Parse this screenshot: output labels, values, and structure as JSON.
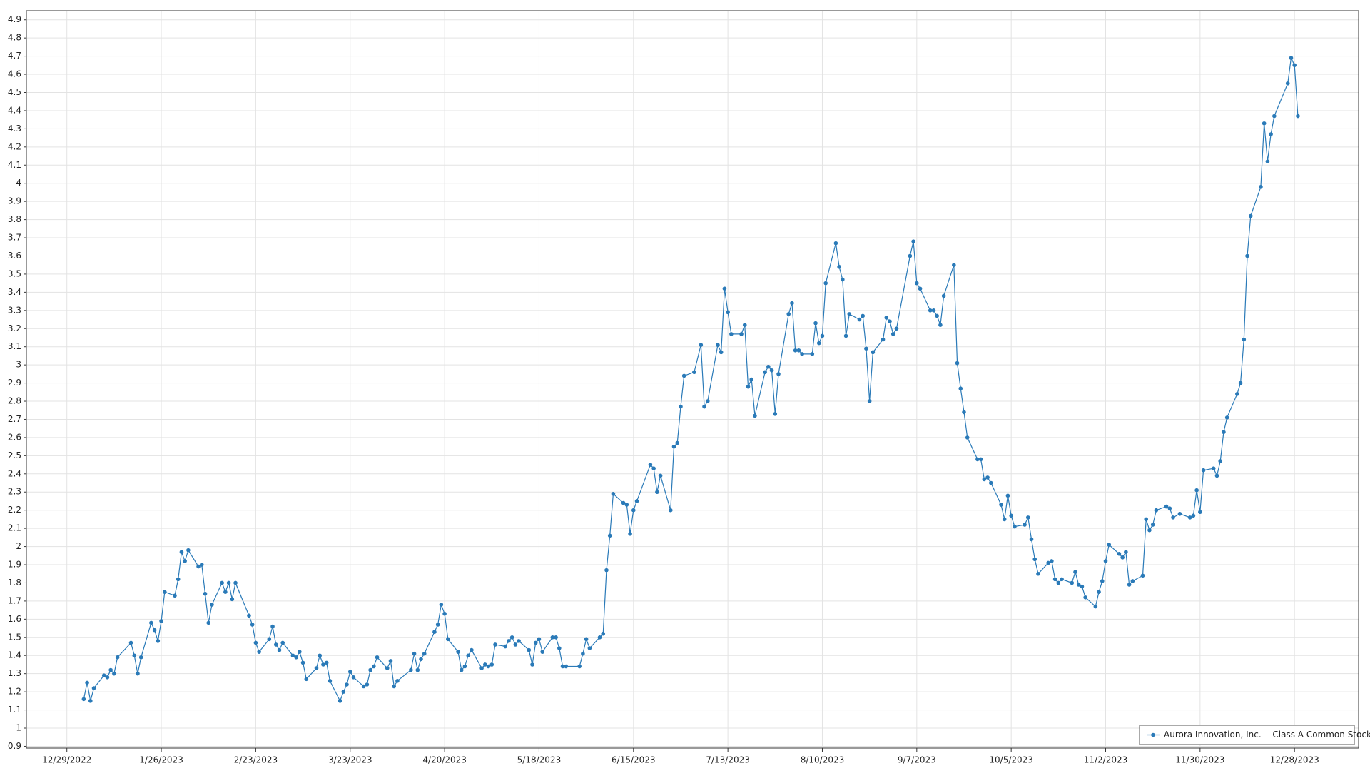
{
  "chart_data": {
    "type": "line",
    "x": [
      "2023-01-03",
      "2023-01-04",
      "2023-01-05",
      "2023-01-06",
      "2023-01-09",
      "2023-01-10",
      "2023-01-11",
      "2023-01-12",
      "2023-01-13",
      "2023-01-17",
      "2023-01-18",
      "2023-01-19",
      "2023-01-20",
      "2023-01-23",
      "2023-01-24",
      "2023-01-25",
      "2023-01-26",
      "2023-01-27",
      "2023-01-30",
      "2023-01-31",
      "2023-02-01",
      "2023-02-02",
      "2023-02-03",
      "2023-02-06",
      "2023-02-07",
      "2023-02-08",
      "2023-02-09",
      "2023-02-10",
      "2023-02-13",
      "2023-02-14",
      "2023-02-15",
      "2023-02-16",
      "2023-02-17",
      "2023-02-21",
      "2023-02-22",
      "2023-02-23",
      "2023-02-24",
      "2023-02-27",
      "2023-02-28",
      "2023-03-01",
      "2023-03-02",
      "2023-03-03",
      "2023-03-06",
      "2023-03-07",
      "2023-03-08",
      "2023-03-09",
      "2023-03-10",
      "2023-03-13",
      "2023-03-14",
      "2023-03-15",
      "2023-03-16",
      "2023-03-17",
      "2023-03-20",
      "2023-03-21",
      "2023-03-22",
      "2023-03-23",
      "2023-03-24",
      "2023-03-27",
      "2023-03-28",
      "2023-03-29",
      "2023-03-30",
      "2023-03-31",
      "2023-04-03",
      "2023-04-04",
      "2023-04-05",
      "2023-04-06",
      "2023-04-10",
      "2023-04-11",
      "2023-04-12",
      "2023-04-13",
      "2023-04-14",
      "2023-04-17",
      "2023-04-18",
      "2023-04-19",
      "2023-04-20",
      "2023-04-21",
      "2023-04-24",
      "2023-04-25",
      "2023-04-26",
      "2023-04-27",
      "2023-04-28",
      "2023-05-01",
      "2023-05-02",
      "2023-05-03",
      "2023-05-04",
      "2023-05-05",
      "2023-05-08",
      "2023-05-09",
      "2023-05-10",
      "2023-05-11",
      "2023-05-12",
      "2023-05-15",
      "2023-05-16",
      "2023-05-17",
      "2023-05-18",
      "2023-05-19",
      "2023-05-22",
      "2023-05-23",
      "2023-05-24",
      "2023-05-25",
      "2023-05-26",
      "2023-05-30",
      "2023-05-31",
      "2023-06-01",
      "2023-06-02",
      "2023-06-05",
      "2023-06-06",
      "2023-06-07",
      "2023-06-08",
      "2023-06-09",
      "2023-06-12",
      "2023-06-13",
      "2023-06-14",
      "2023-06-15",
      "2023-06-16",
      "2023-06-20",
      "2023-06-21",
      "2023-06-22",
      "2023-06-23",
      "2023-06-26",
      "2023-06-27",
      "2023-06-28",
      "2023-06-29",
      "2023-06-30",
      "2023-07-03",
      "2023-07-05",
      "2023-07-06",
      "2023-07-07",
      "2023-07-10",
      "2023-07-11",
      "2023-07-12",
      "2023-07-13",
      "2023-07-14",
      "2023-07-17",
      "2023-07-18",
      "2023-07-19",
      "2023-07-20",
      "2023-07-21",
      "2023-07-24",
      "2023-07-25",
      "2023-07-26",
      "2023-07-27",
      "2023-07-28",
      "2023-07-31",
      "2023-08-01",
      "2023-08-02",
      "2023-08-03",
      "2023-08-04",
      "2023-08-07",
      "2023-08-08",
      "2023-08-09",
      "2023-08-10",
      "2023-08-11",
      "2023-08-14",
      "2023-08-15",
      "2023-08-16",
      "2023-08-17",
      "2023-08-18",
      "2023-08-21",
      "2023-08-22",
      "2023-08-23",
      "2023-08-24",
      "2023-08-25",
      "2023-08-28",
      "2023-08-29",
      "2023-08-30",
      "2023-08-31",
      "2023-09-01",
      "2023-09-05",
      "2023-09-06",
      "2023-09-07",
      "2023-09-08",
      "2023-09-11",
      "2023-09-12",
      "2023-09-13",
      "2023-09-14",
      "2023-09-15",
      "2023-09-18",
      "2023-09-19",
      "2023-09-20",
      "2023-09-21",
      "2023-09-22",
      "2023-09-25",
      "2023-09-26",
      "2023-09-27",
      "2023-09-28",
      "2023-09-29",
      "2023-10-02",
      "2023-10-03",
      "2023-10-04",
      "2023-10-05",
      "2023-10-06",
      "2023-10-09",
      "2023-10-10",
      "2023-10-11",
      "2023-10-12",
      "2023-10-13",
      "2023-10-16",
      "2023-10-17",
      "2023-10-18",
      "2023-10-19",
      "2023-10-20",
      "2023-10-23",
      "2023-10-24",
      "2023-10-25",
      "2023-10-26",
      "2023-10-27",
      "2023-10-30",
      "2023-10-31",
      "2023-11-01",
      "2023-11-02",
      "2023-11-03",
      "2023-11-06",
      "2023-11-07",
      "2023-11-08",
      "2023-11-09",
      "2023-11-10",
      "2023-11-13",
      "2023-11-14",
      "2023-11-15",
      "2023-11-16",
      "2023-11-17",
      "2023-11-20",
      "2023-11-21",
      "2023-11-22",
      "2023-11-24",
      "2023-11-27",
      "2023-11-28",
      "2023-11-29",
      "2023-11-30",
      "2023-12-01",
      "2023-12-04",
      "2023-12-05",
      "2023-12-06",
      "2023-12-07",
      "2023-12-08",
      "2023-12-11",
      "2023-12-12",
      "2023-12-13",
      "2023-12-14",
      "2023-12-15",
      "2023-12-18",
      "2023-12-19",
      "2023-12-20",
      "2023-12-21",
      "2023-12-22",
      "2023-12-26",
      "2023-12-27",
      "2023-12-28",
      "2023-12-29"
    ],
    "series": [
      {
        "name": "Aurora Innovation, Inc.  - Class A Common Stock",
        "color": "#2a7ab8",
        "values": [
          1.16,
          1.25,
          1.15,
          1.22,
          1.29,
          1.28,
          1.32,
          1.3,
          1.39,
          1.47,
          1.4,
          1.3,
          1.39,
          1.58,
          1.54,
          1.48,
          1.59,
          1.75,
          1.73,
          1.82,
          1.97,
          1.92,
          1.98,
          1.89,
          1.9,
          1.74,
          1.58,
          1.68,
          1.8,
          1.75,
          1.8,
          1.71,
          1.8,
          1.62,
          1.57,
          1.47,
          1.42,
          1.49,
          1.56,
          1.46,
          1.43,
          1.47,
          1.4,
          1.39,
          1.42,
          1.36,
          1.27,
          1.33,
          1.4,
          1.35,
          1.36,
          1.26,
          1.15,
          1.2,
          1.24,
          1.31,
          1.28,
          1.23,
          1.24,
          1.32,
          1.34,
          1.39,
          1.33,
          1.37,
          1.23,
          1.26,
          1.32,
          1.41,
          1.32,
          1.38,
          1.41,
          1.53,
          1.57,
          1.68,
          1.63,
          1.49,
          1.42,
          1.32,
          1.34,
          1.4,
          1.43,
          1.33,
          1.35,
          1.34,
          1.35,
          1.46,
          1.45,
          1.48,
          1.5,
          1.46,
          1.48,
          1.43,
          1.35,
          1.47,
          1.49,
          1.42,
          1.5,
          1.5,
          1.44,
          1.34,
          1.34,
          1.34,
          1.41,
          1.49,
          1.44,
          1.5,
          1.52,
          1.87,
          2.06,
          2.29,
          2.24,
          2.23,
          2.07,
          2.2,
          2.25,
          2.45,
          2.43,
          2.3,
          2.39,
          2.2,
          2.55,
          2.57,
          2.77,
          2.94,
          2.96,
          3.11,
          2.77,
          2.8,
          3.11,
          3.07,
          3.42,
          3.29,
          3.17,
          3.17,
          3.22,
          2.88,
          2.92,
          2.72,
          2.96,
          2.99,
          2.97,
          2.73,
          2.95,
          3.28,
          3.34,
          3.08,
          3.08,
          3.06,
          3.06,
          3.23,
          3.12,
          3.16,
          3.45,
          3.67,
          3.54,
          3.47,
          3.16,
          3.28,
          3.25,
          3.27,
          3.09,
          2.8,
          3.07,
          3.14,
          3.26,
          3.24,
          3.17,
          3.2,
          3.6,
          3.68,
          3.45,
          3.42,
          3.3,
          3.3,
          3.27,
          3.22,
          3.38,
          3.55,
          3.01,
          2.87,
          2.74,
          2.6,
          2.48,
          2.48,
          2.37,
          2.38,
          2.35,
          2.23,
          2.15,
          2.28,
          2.17,
          2.11,
          2.12,
          2.16,
          2.04,
          1.93,
          1.85,
          1.91,
          1.92,
          1.82,
          1.8,
          1.82,
          1.8,
          1.86,
          1.79,
          1.78,
          1.72,
          1.67,
          1.75,
          1.81,
          1.92,
          2.01,
          1.96,
          1.94,
          1.97,
          1.79,
          1.81,
          1.84,
          2.15,
          2.09,
          2.12,
          2.2,
          2.22,
          2.21,
          2.16,
          2.18,
          2.16,
          2.17,
          2.31,
          2.19,
          2.42,
          2.43,
          2.39,
          2.47,
          2.63,
          2.71,
          2.84,
          2.9,
          3.14,
          3.6,
          3.82,
          3.98,
          4.33,
          4.12,
          4.27,
          4.37,
          4.55,
          4.69,
          4.65,
          4.37
        ]
      }
    ],
    "xlim": [
      "2022-12-17",
      "2024-01-16"
    ],
    "xticks": [
      {
        "value": "2022-12-29",
        "label": "12/29/2022"
      },
      {
        "value": "2023-01-26",
        "label": "1/26/2023"
      },
      {
        "value": "2023-02-23",
        "label": "2/23/2023"
      },
      {
        "value": "2023-03-23",
        "label": "3/23/2023"
      },
      {
        "value": "2023-04-20",
        "label": "4/20/2023"
      },
      {
        "value": "2023-05-18",
        "label": "5/18/2023"
      },
      {
        "value": "2023-06-15",
        "label": "6/15/2023"
      },
      {
        "value": "2023-07-13",
        "label": "7/13/2023"
      },
      {
        "value": "2023-08-10",
        "label": "8/10/2023"
      },
      {
        "value": "2023-09-07",
        "label": "9/7/2023"
      },
      {
        "value": "2023-10-05",
        "label": "10/5/2023"
      },
      {
        "value": "2023-11-02",
        "label": "11/2/2023"
      },
      {
        "value": "2023-11-30",
        "label": "11/30/2023"
      },
      {
        "value": "2023-12-28",
        "label": "12/28/2023"
      }
    ],
    "ylim": [
      0.89,
      4.95
    ],
    "yticks": [
      0.9,
      1,
      1.1,
      1.2,
      1.3,
      1.4,
      1.5,
      1.6,
      1.7,
      1.8,
      1.9,
      2,
      2.1,
      2.2,
      2.3,
      2.4,
      2.5,
      2.6,
      2.7,
      2.8,
      2.9,
      3,
      3.1,
      3.2,
      3.3,
      3.4,
      3.5,
      3.6,
      3.7,
      3.8,
      3.9,
      4,
      4.1,
      4.2,
      4.3,
      4.4,
      4.5,
      4.6,
      4.7,
      4.8,
      4.9
    ],
    "grid": true,
    "markers": true,
    "legend": "lower right"
  }
}
